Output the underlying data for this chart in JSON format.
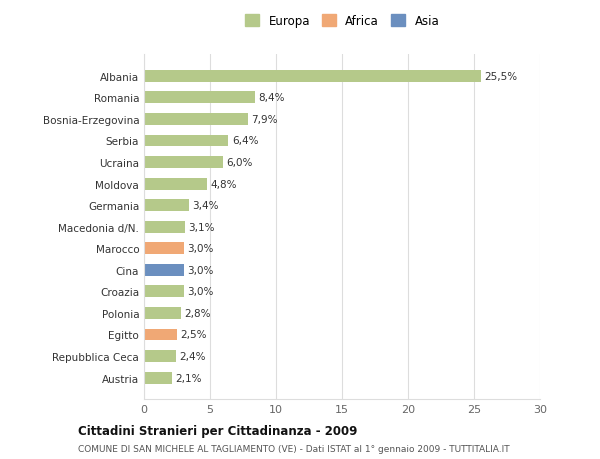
{
  "categories": [
    "Albania",
    "Romania",
    "Bosnia-Erzegovina",
    "Serbia",
    "Ucraina",
    "Moldova",
    "Germania",
    "Macedonia d/N.",
    "Marocco",
    "Cina",
    "Croazia",
    "Polonia",
    "Egitto",
    "Repubblica Ceca",
    "Austria"
  ],
  "values": [
    25.5,
    8.4,
    7.9,
    6.4,
    6.0,
    4.8,
    3.4,
    3.1,
    3.0,
    3.0,
    3.0,
    2.8,
    2.5,
    2.4,
    2.1
  ],
  "labels": [
    "25,5%",
    "8,4%",
    "7,9%",
    "6,4%",
    "6,0%",
    "4,8%",
    "3,4%",
    "3,1%",
    "3,0%",
    "3,0%",
    "3,0%",
    "2,8%",
    "2,5%",
    "2,4%",
    "2,1%"
  ],
  "colors": [
    "#b5c98a",
    "#b5c98a",
    "#b5c98a",
    "#b5c98a",
    "#b5c98a",
    "#b5c98a",
    "#b5c98a",
    "#b5c98a",
    "#f0a875",
    "#6b8fbf",
    "#b5c98a",
    "#b5c98a",
    "#f0a875",
    "#b5c98a",
    "#b5c98a"
  ],
  "legend_labels": [
    "Europa",
    "Africa",
    "Asia"
  ],
  "legend_colors": [
    "#b5c98a",
    "#f0a875",
    "#6b8fbf"
  ],
  "xlim": [
    0,
    30
  ],
  "xticks": [
    0,
    5,
    10,
    15,
    20,
    25,
    30
  ],
  "title": "Cittadini Stranieri per Cittadinanza - 2009",
  "subtitle": "COMUNE DI SAN MICHELE AL TAGLIAMENTO (VE) - Dati ISTAT al 1° gennaio 2009 - TUTTITALIA.IT",
  "background_color": "#ffffff",
  "grid_color": "#dddddd",
  "bar_height": 0.55,
  "label_fontsize": 7.5,
  "ytick_fontsize": 7.5,
  "xtick_fontsize": 8.0,
  "legend_fontsize": 8.5
}
